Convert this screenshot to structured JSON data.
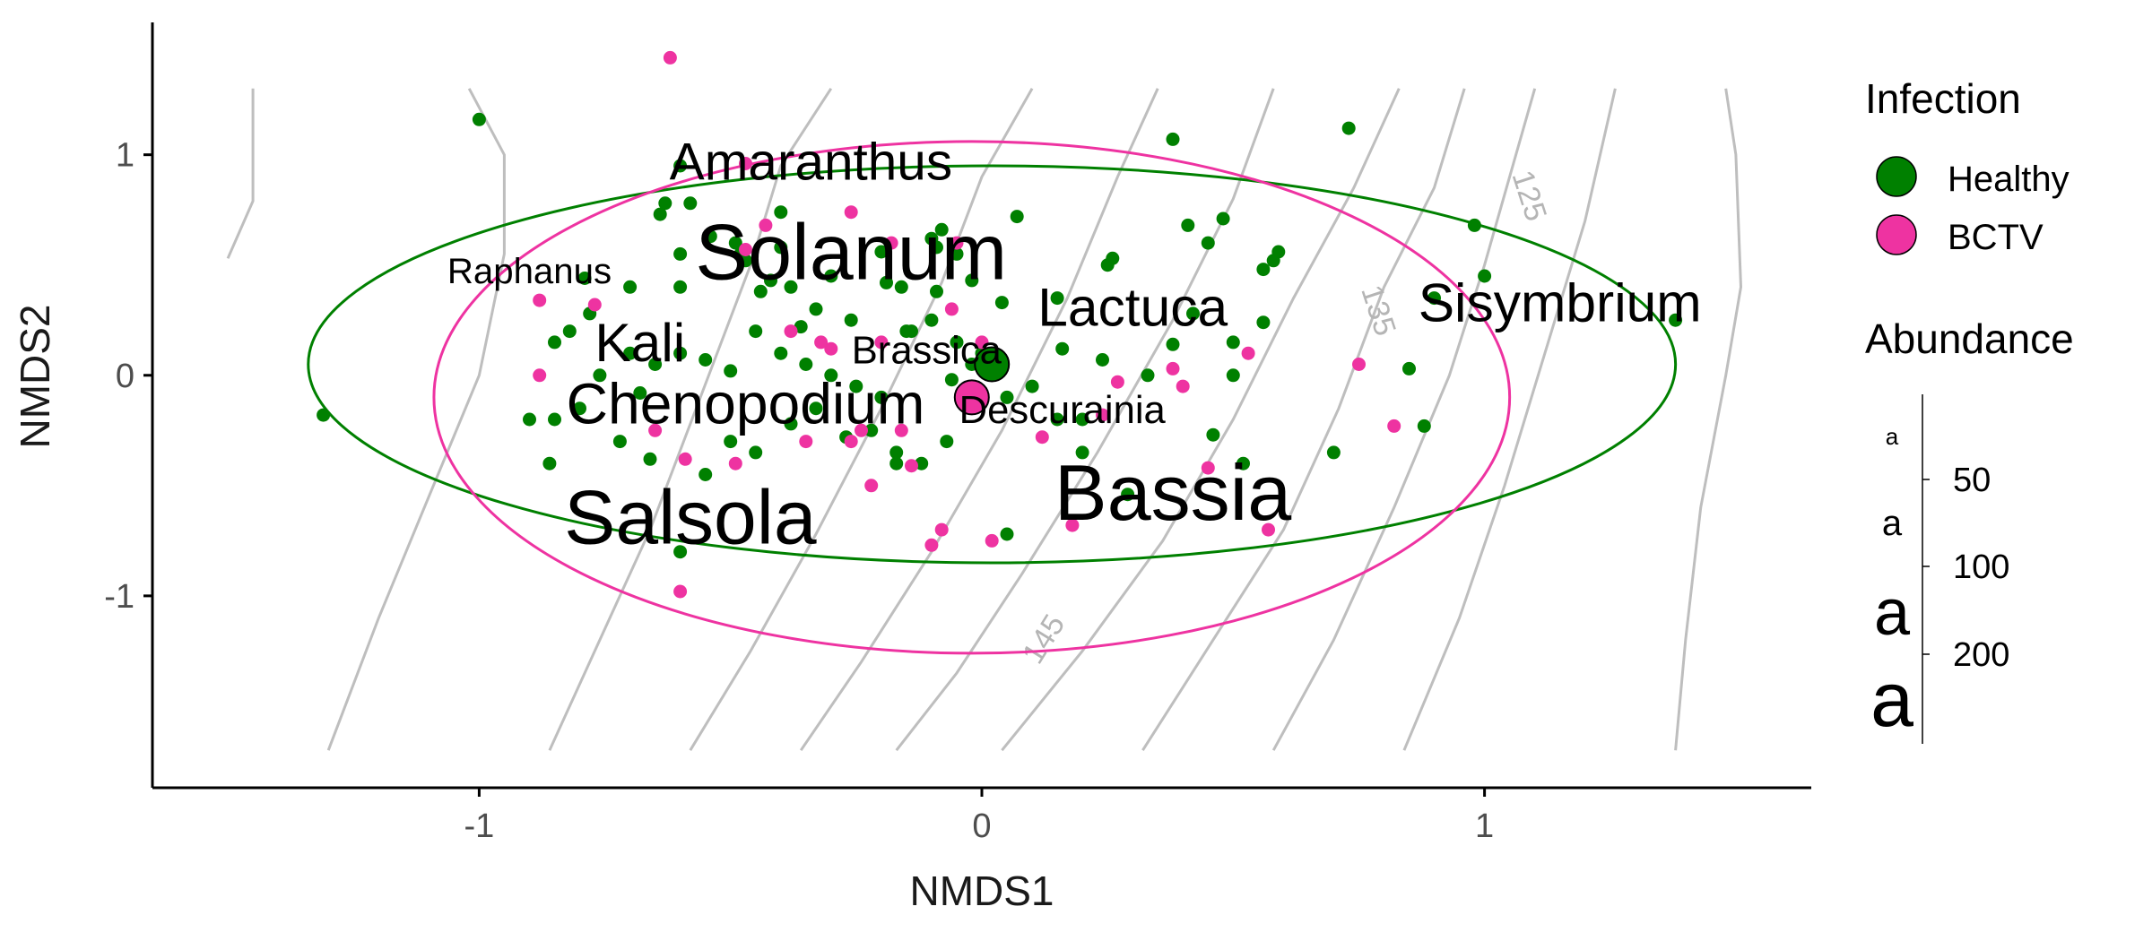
{
  "chart_data": {
    "type": "scatter",
    "xlabel": "NMDS1",
    "ylabel": "NMDS2",
    "xlim": [
      -1.65,
      1.65
    ],
    "ylim": [
      -1.87,
      1.6
    ],
    "xticks": [
      -1,
      0,
      1
    ],
    "yticks": [
      -1,
      0,
      1
    ],
    "grid": false,
    "legend_placement": "right",
    "colors": {
      "Healthy": "#008000",
      "BCTV": "#EE33A1",
      "contour": "#BEBEBE",
      "axis": "#000000"
    },
    "series": [
      {
        "name": "Healthy",
        "color": "#008000",
        "points": [
          [
            -1.0,
            1.16
          ],
          [
            -1.31,
            -0.18
          ],
          [
            -0.6,
            0.95
          ],
          [
            -0.63,
            0.78
          ],
          [
            -0.58,
            0.78
          ],
          [
            -0.64,
            0.73
          ],
          [
            -0.6,
            0.55
          ],
          [
            -0.6,
            0.4
          ],
          [
            -0.54,
            0.63
          ],
          [
            -0.49,
            0.6
          ],
          [
            -0.48,
            0.55
          ],
          [
            -0.47,
            0.52
          ],
          [
            -0.4,
            0.74
          ],
          [
            -0.4,
            0.58
          ],
          [
            -0.42,
            0.43
          ],
          [
            -0.44,
            0.38
          ],
          [
            -0.38,
            0.4
          ],
          [
            -0.33,
            0.3
          ],
          [
            -0.3,
            0.45
          ],
          [
            -0.2,
            0.56
          ],
          [
            -0.19,
            0.42
          ],
          [
            -0.16,
            0.4
          ],
          [
            -0.1,
            0.62
          ],
          [
            -0.09,
            0.58
          ],
          [
            -0.08,
            0.66
          ],
          [
            -0.05,
            0.55
          ],
          [
            -0.02,
            0.43
          ],
          [
            0.04,
            0.33
          ],
          [
            0.07,
            0.72
          ],
          [
            0.15,
            0.35
          ],
          [
            0.25,
            0.5
          ],
          [
            0.26,
            0.53
          ],
          [
            0.38,
            1.07
          ],
          [
            0.41,
            0.68
          ],
          [
            0.45,
            0.6
          ],
          [
            0.48,
            0.71
          ],
          [
            0.56,
            0.48
          ],
          [
            0.58,
            0.52
          ],
          [
            0.59,
            0.56
          ],
          [
            0.73,
            1.12
          ],
          [
            0.98,
            0.68
          ],
          [
            1.0,
            0.45
          ],
          [
            0.9,
            0.35
          ],
          [
            0.56,
            0.24
          ],
          [
            0.42,
            0.28
          ],
          [
            0.38,
            0.14
          ],
          [
            0.5,
            0.15
          ],
          [
            0.5,
            0.0
          ],
          [
            0.33,
            0.0
          ],
          [
            0.24,
            0.07
          ],
          [
            0.16,
            0.12
          ],
          [
            0.2,
            -0.2
          ],
          [
            0.2,
            -0.35
          ],
          [
            0.46,
            -0.27
          ],
          [
            0.52,
            -0.4
          ],
          [
            0.7,
            -0.35
          ],
          [
            0.85,
            0.03
          ],
          [
            0.88,
            -0.23
          ],
          [
            1.38,
            0.25
          ],
          [
            -0.9,
            -0.2
          ],
          [
            -0.8,
            -0.15
          ],
          [
            -0.79,
            0.44
          ],
          [
            -0.7,
            0.4
          ],
          [
            -0.65,
            0.05
          ],
          [
            -0.6,
            0.1
          ],
          [
            -0.55,
            0.07
          ],
          [
            -0.5,
            0.02
          ],
          [
            -0.45,
            0.2
          ],
          [
            -0.4,
            0.1
          ],
          [
            -0.35,
            0.05
          ],
          [
            -0.3,
            0.0
          ],
          [
            -0.25,
            -0.05
          ],
          [
            -0.2,
            -0.1
          ],
          [
            -0.15,
            0.2
          ],
          [
            -0.1,
            0.25
          ],
          [
            -0.05,
            0.15
          ],
          [
            0.0,
            0.1
          ],
          [
            -0.02,
            0.05
          ],
          [
            -0.06,
            -0.02
          ],
          [
            0.05,
            -0.1
          ],
          [
            0.1,
            -0.05
          ],
          [
            0.15,
            -0.2
          ],
          [
            -0.6,
            -0.8
          ],
          [
            -0.55,
            -0.45
          ],
          [
            -0.5,
            -0.3
          ],
          [
            -0.45,
            -0.35
          ],
          [
            -0.38,
            -0.22
          ],
          [
            -0.33,
            -0.15
          ],
          [
            -0.27,
            -0.28
          ],
          [
            -0.22,
            -0.25
          ],
          [
            -0.17,
            -0.35
          ],
          [
            -0.12,
            -0.4
          ],
          [
            -0.07,
            -0.3
          ],
          [
            0.05,
            -0.72
          ],
          [
            -0.85,
            0.15
          ],
          [
            -0.82,
            0.2
          ],
          [
            -0.78,
            0.28
          ],
          [
            -0.76,
            0.0
          ],
          [
            -0.72,
            -0.3
          ],
          [
            -0.68,
            -0.08
          ],
          [
            -0.86,
            -0.4
          ],
          [
            -0.85,
            -0.2
          ],
          [
            -0.7,
            0.1
          ],
          [
            -0.66,
            -0.38
          ],
          [
            0.29,
            -0.54
          ],
          [
            -0.17,
            -0.4
          ],
          [
            -0.14,
            0.2
          ],
          [
            -0.09,
            0.38
          ],
          [
            -0.36,
            0.22
          ],
          [
            -0.26,
            0.25
          ]
        ]
      },
      {
        "name": "BCTV",
        "color": "#EE33A1",
        "points": [
          [
            -0.62,
            1.44
          ],
          [
            -0.47,
            0.96
          ],
          [
            -0.26,
            0.74
          ],
          [
            -0.43,
            0.68
          ],
          [
            -0.47,
            0.57
          ],
          [
            -0.18,
            0.6
          ],
          [
            -0.05,
            0.6
          ],
          [
            0.0,
            0.15
          ],
          [
            -0.88,
            0.34
          ],
          [
            -0.77,
            0.32
          ],
          [
            -0.88,
            0.0
          ],
          [
            -0.65,
            -0.25
          ],
          [
            -0.59,
            -0.38
          ],
          [
            -0.49,
            -0.4
          ],
          [
            -0.35,
            -0.3
          ],
          [
            -0.26,
            -0.3
          ],
          [
            -0.22,
            -0.5
          ],
          [
            -0.14,
            -0.41
          ],
          [
            -0.1,
            -0.77
          ],
          [
            -0.08,
            -0.7
          ],
          [
            0.02,
            -0.75
          ],
          [
            0.18,
            -0.68
          ],
          [
            0.45,
            -0.42
          ],
          [
            0.57,
            -0.7
          ],
          [
            0.82,
            -0.23
          ],
          [
            0.75,
            0.05
          ],
          [
            0.53,
            0.1
          ],
          [
            0.38,
            0.03
          ],
          [
            0.27,
            -0.03
          ],
          [
            0.24,
            -0.18
          ],
          [
            0.12,
            -0.28
          ],
          [
            -0.3,
            0.12
          ],
          [
            -0.2,
            0.15
          ],
          [
            -0.06,
            0.3
          ],
          [
            0.4,
            -0.05
          ],
          [
            -0.6,
            -0.98
          ],
          [
            -0.38,
            0.2
          ],
          [
            -0.32,
            0.15
          ],
          [
            -0.24,
            -0.25
          ],
          [
            -0.16,
            -0.25
          ]
        ]
      }
    ],
    "centroids": [
      {
        "group": "Healthy",
        "x": 0.02,
        "y": 0.05
      },
      {
        "group": "BCTV",
        "x": -0.02,
        "y": -0.1
      }
    ],
    "ellipses": [
      {
        "group": "Healthy",
        "cx": 0.02,
        "cy": 0.05,
        "rx": 1.36,
        "ry": 0.9,
        "angle": 0.35
      },
      {
        "group": "BCTV",
        "cx": -0.02,
        "cy": -0.1,
        "rx": 1.07,
        "ry": 1.16,
        "angle": 0
      }
    ],
    "contour_labels": [
      "125",
      "135",
      "145"
    ],
    "contours": [
      [
        [
          -1.5,
          0.53
        ],
        [
          -1.45,
          0.79
        ],
        [
          -1.45,
          1.3
        ]
      ],
      [
        [
          -1.3,
          -1.7
        ],
        [
          -1.2,
          -1.1
        ],
        [
          -1.1,
          -0.55
        ],
        [
          -1.0,
          0.0
        ],
        [
          -0.95,
          0.55
        ],
        [
          -0.95,
          1.0
        ],
        [
          -1.02,
          1.3
        ]
      ],
      [
        [
          -0.86,
          -1.7
        ],
        [
          -0.76,
          -1.2
        ],
        [
          -0.66,
          -0.7
        ],
        [
          -0.56,
          -0.1
        ],
        [
          -0.46,
          0.5
        ],
        [
          -0.4,
          0.95
        ],
        [
          -0.3,
          1.3
        ]
      ],
      [
        [
          -0.58,
          -1.7
        ],
        [
          -0.46,
          -1.25
        ],
        [
          -0.33,
          -0.72
        ],
        [
          -0.2,
          -0.15
        ],
        [
          -0.08,
          0.42
        ],
        [
          0.0,
          0.9
        ],
        [
          0.1,
          1.3
        ]
      ],
      [
        [
          -0.36,
          -1.7
        ],
        [
          -0.24,
          -1.3
        ],
        [
          -0.1,
          -0.8
        ],
        [
          0.04,
          -0.25
        ],
        [
          0.17,
          0.35
        ],
        [
          0.27,
          0.9
        ],
        [
          0.35,
          1.3
        ]
      ],
      [
        [
          -0.17,
          -1.7
        ],
        [
          -0.05,
          -1.35
        ],
        [
          0.08,
          -0.9
        ],
        [
          0.23,
          -0.35
        ],
        [
          0.38,
          0.25
        ],
        [
          0.5,
          0.8
        ],
        [
          0.58,
          1.3
        ]
      ],
      [
        [
          0.04,
          -1.7
        ],
        [
          0.2,
          -1.25
        ],
        [
          0.36,
          -0.75
        ],
        [
          0.5,
          -0.2
        ],
        [
          0.62,
          0.35
        ],
        [
          0.74,
          0.85
        ],
        [
          0.83,
          1.3
        ]
      ],
      [
        [
          0.32,
          -1.7
        ],
        [
          0.46,
          -1.2
        ],
        [
          0.6,
          -0.7
        ],
        [
          0.71,
          -0.15
        ],
        [
          0.8,
          0.4
        ],
        [
          0.9,
          0.85
        ],
        [
          0.96,
          1.3
        ]
      ],
      [
        [
          0.58,
          -1.7
        ],
        [
          0.7,
          -1.2
        ],
        [
          0.82,
          -0.6
        ],
        [
          0.93,
          0.0
        ],
        [
          1.0,
          0.5
        ],
        [
          1.05,
          0.9
        ],
        [
          1.1,
          1.3
        ]
      ],
      [
        [
          0.84,
          -1.7
        ],
        [
          0.95,
          -1.1
        ],
        [
          1.04,
          -0.5
        ],
        [
          1.12,
          0.1
        ],
        [
          1.2,
          0.7
        ],
        [
          1.26,
          1.3
        ]
      ],
      [
        [
          1.38,
          -1.7
        ],
        [
          1.4,
          -1.2
        ],
        [
          1.43,
          -0.6
        ],
        [
          1.48,
          0.0
        ],
        [
          1.51,
          0.4
        ],
        [
          1.5,
          1.0
        ],
        [
          1.48,
          1.3
        ]
      ]
    ],
    "contour_label_positions": [
      {
        "text": "125",
        "x": 1.07,
        "y": 0.8,
        "rotate": 72
      },
      {
        "text": "135",
        "x": 0.77,
        "y": 0.28,
        "rotate": 72
      },
      {
        "text": "145",
        "x": 0.14,
        "y": -1.22,
        "rotate": -58
      }
    ],
    "genus_labels": [
      {
        "text": "Amaranthus",
        "x": -0.34,
        "y": 0.95,
        "abundance": 100
      },
      {
        "text": "Solanum",
        "x": -0.26,
        "y": 0.53,
        "abundance": 300
      },
      {
        "text": "Raphanus",
        "x": -0.9,
        "y": 0.46,
        "abundance": 30
      },
      {
        "text": "Kali",
        "x": -0.68,
        "y": 0.13,
        "abundance": 110
      },
      {
        "text": "Lactuca",
        "x": 0.3,
        "y": 0.29,
        "abundance": 110
      },
      {
        "text": "Sisymbrium",
        "x": 1.15,
        "y": 0.31,
        "abundance": 110
      },
      {
        "text": "Brassica",
        "x": -0.11,
        "y": 0.1,
        "abundance": 40
      },
      {
        "text": "Chenopodium",
        "x": -0.47,
        "y": -0.15,
        "abundance": 130
      },
      {
        "text": "Descurainia",
        "x": 0.16,
        "y": -0.17,
        "abundance": 40
      },
      {
        "text": "Bassia",
        "x": 0.38,
        "y": -0.56,
        "abundance": 300
      },
      {
        "text": "Salsola",
        "x": -0.58,
        "y": -0.67,
        "abundance": 280
      }
    ],
    "legend": {
      "infection_title": "Infection",
      "infection_items": [
        {
          "label": "Healthy",
          "color": "#008000"
        },
        {
          "label": "BCTV",
          "color": "#EE33A1"
        }
      ],
      "abundance_title": "Abundance",
      "abundance_key_glyph": "a",
      "abundance_breaks": [
        "50",
        "100",
        "200"
      ]
    }
  }
}
